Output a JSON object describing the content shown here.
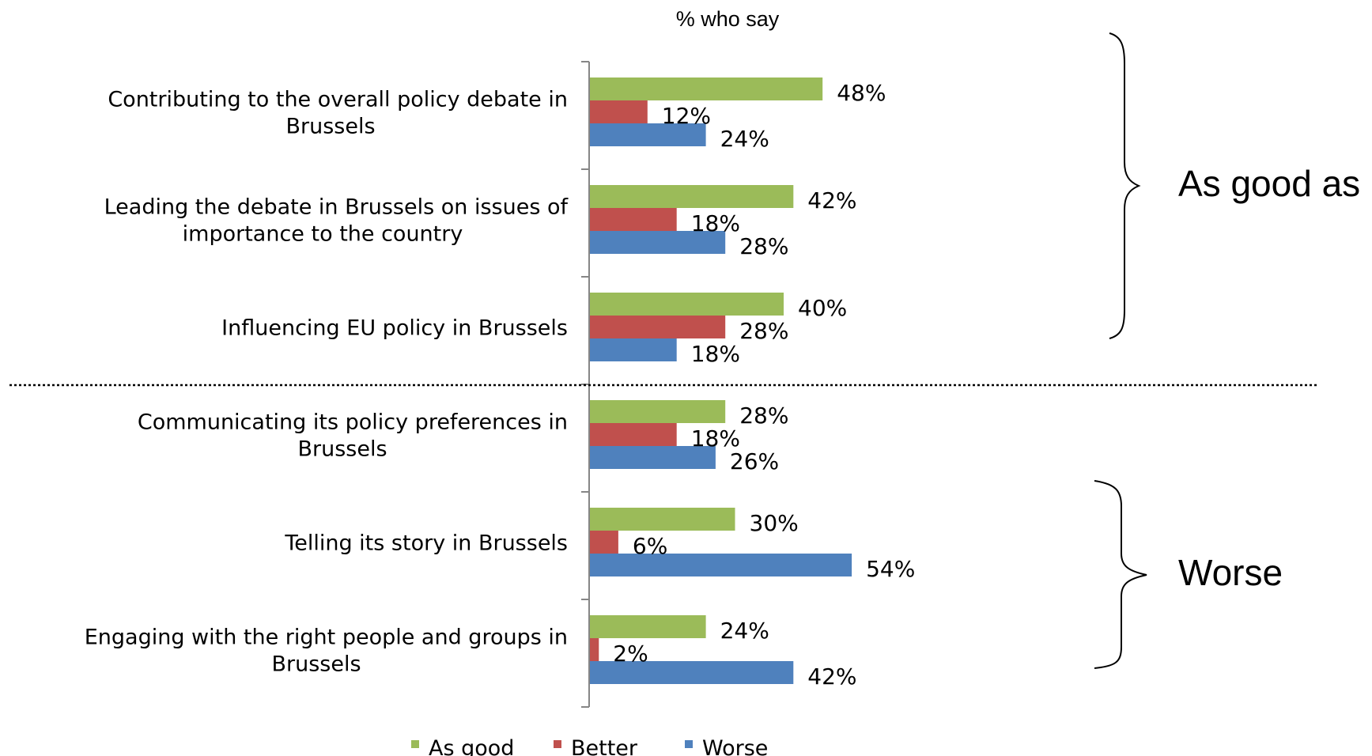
{
  "chart_data": {
    "type": "bar",
    "orientation": "horizontal",
    "title": "% who say",
    "categories": [
      "Contributing to the overall policy debate in Brussels",
      "Leading the debate in Brussels on issues of importance to the country",
      "Influencing EU policy in Brussels",
      "Communicating its policy preferences in Brussels",
      "Telling its story in Brussels",
      "Engaging with the right people and groups in Brussels"
    ],
    "series": [
      {
        "name": "As good",
        "color": "#9BBB59",
        "values": [
          48,
          42,
          40,
          28,
          30,
          24
        ]
      },
      {
        "name": "Better",
        "color": "#C0504D",
        "values": [
          12,
          18,
          28,
          18,
          6,
          2
        ]
      },
      {
        "name": "Worse",
        "color": "#4F81BD",
        "values": [
          24,
          28,
          18,
          26,
          54,
          42
        ]
      }
    ],
    "value_suffix": "%",
    "legend_position": "bottom",
    "grid": false,
    "groups": [
      {
        "label": "As good as",
        "categories": [
          0,
          1,
          2
        ]
      },
      {
        "label": "Worse",
        "categories": [
          4,
          5
        ]
      }
    ]
  }
}
